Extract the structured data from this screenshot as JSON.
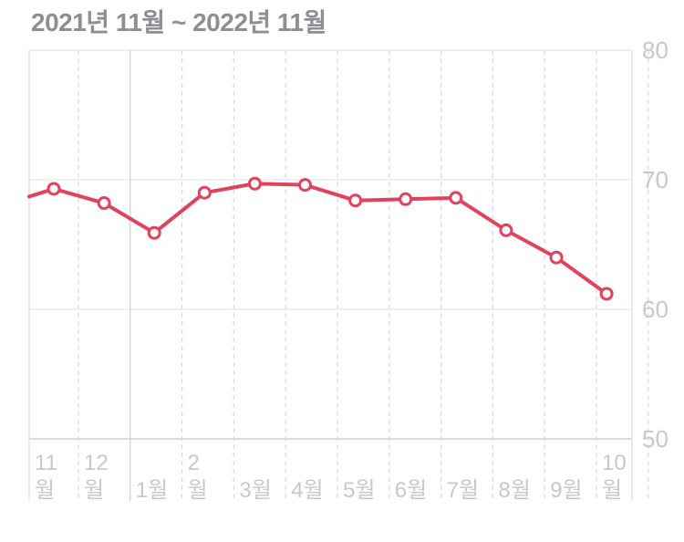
{
  "header": {
    "title": "2021년 11월 ~ 2022년 11월"
  },
  "chart_data": {
    "type": "line",
    "grid": true,
    "ylim": [
      50,
      80
    ],
    "yticks": [
      "50",
      "60",
      "70",
      "80"
    ],
    "xticks": [
      {
        "lines": [
          "11",
          "월"
        ]
      },
      {
        "lines": [
          "12",
          "월"
        ]
      },
      {
        "lines": [
          "1월"
        ]
      },
      {
        "lines": [
          "2",
          "월"
        ]
      },
      {
        "lines": [
          "3월"
        ]
      },
      {
        "lines": [
          "4월"
        ]
      },
      {
        "lines": [
          "5월"
        ]
      },
      {
        "lines": [
          "6월"
        ]
      },
      {
        "lines": [
          "7월"
        ]
      },
      {
        "lines": [
          "8월"
        ]
      },
      {
        "lines": [
          "9월"
        ]
      },
      {
        "lines": [
          "10",
          "월"
        ]
      }
    ],
    "series": [
      {
        "color": "#e0435d",
        "values": [
          68.7,
          69.3,
          68.2,
          65.9,
          69.0,
          69.7,
          69.6,
          68.4,
          68.5,
          68.6,
          66.1,
          64.0,
          61.2
        ]
      }
    ]
  }
}
